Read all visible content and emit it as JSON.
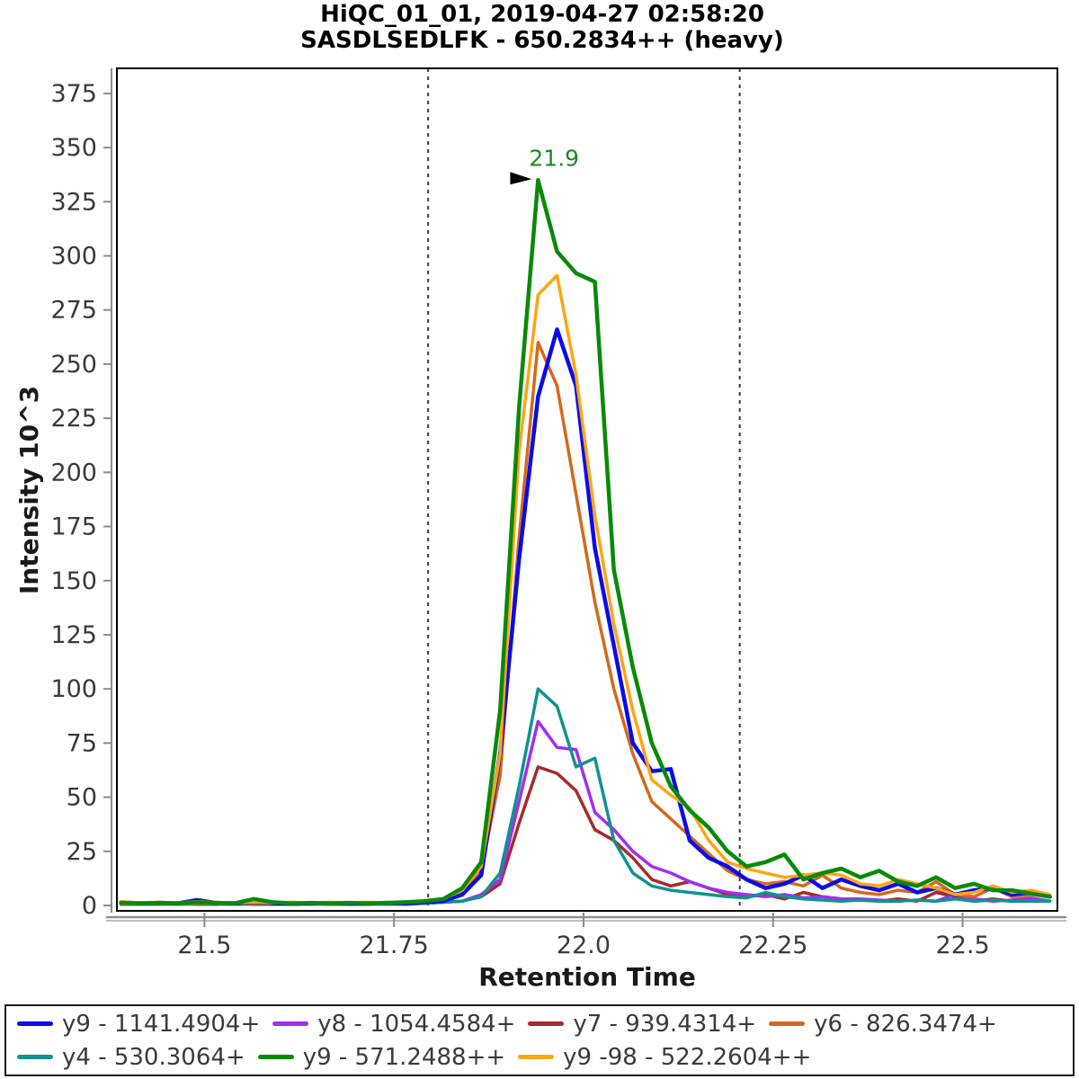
{
  "title": {
    "line1": "HiQC_01_01, 2019-04-27 02:58:20",
    "line2": "SASDLSEDLFK - 650.2834++ (heavy)"
  },
  "axes": {
    "x_label": "Retention Time",
    "y_label": "Intensity 10^3",
    "x_tick_labels": [
      "21.5",
      "21.75",
      "22.0",
      "22.25",
      "22.5"
    ],
    "x_tick_values": [
      21.5,
      21.75,
      22.0,
      22.25,
      22.5
    ],
    "y_tick_values": [
      0,
      25,
      50,
      75,
      100,
      125,
      150,
      175,
      200,
      225,
      250,
      275,
      300,
      325,
      350,
      375
    ]
  },
  "annotation": {
    "text": "21.9",
    "rt": 21.94,
    "intensity": 335,
    "color": "#1c8a1c"
  },
  "peak_boundaries": [
    21.795,
    22.206
  ],
  "legend": {
    "rows": [
      [
        {
          "label": "y9 - 1141.4904+",
          "color": "#0b0be8"
        },
        {
          "label": "y8 - 1054.4584+",
          "color": "#a02ff0"
        },
        {
          "label": "y7 - 939.4314+",
          "color": "#a52a2a"
        },
        {
          "label": "y6 - 826.3474+",
          "color": "#d2691e"
        }
      ],
      [
        {
          "label": "y4 - 530.3064+",
          "color": "#0f9390"
        },
        {
          "label": "y9 - 571.2488++",
          "color": "#088a08"
        },
        {
          "label": "y9 -98 - 522.2604++",
          "color": "#ffa512"
        }
      ]
    ]
  },
  "chart_data": {
    "type": "line",
    "title": "HiQC_01_01, 2019-04-27 02:58:20 — SASDLSEDLFK - 650.2834++ (heavy)",
    "xlabel": "Retention Time",
    "ylabel": "Intensity 10^3",
    "xlim": [
      21.3845,
      22.625
    ],
    "ylim": [
      -2.5,
      386.6
    ],
    "grid": false,
    "legend_position": "bottom",
    "peak_boundaries": [
      21.795,
      22.206
    ],
    "annotated_peak": {
      "rt": 21.94,
      "intensity_10e3": 335,
      "label": "21.9"
    },
    "x": [
      21.39,
      21.415,
      21.44,
      21.465,
      21.49,
      21.515,
      21.54,
      21.565,
      21.59,
      21.615,
      21.64,
      21.665,
      21.69,
      21.715,
      21.74,
      21.765,
      21.79,
      21.815,
      21.84,
      21.865,
      21.89,
      21.915,
      21.94,
      21.965,
      21.99,
      22.015,
      22.04,
      22.065,
      22.09,
      22.115,
      22.14,
      22.165,
      22.19,
      22.215,
      22.24,
      22.265,
      22.29,
      22.315,
      22.34,
      22.365,
      22.39,
      22.415,
      22.44,
      22.465,
      22.49,
      22.515,
      22.54,
      22.565,
      22.59,
      22.615
    ],
    "series": [
      {
        "name": "y7 - 939.4314+",
        "color": "#a52a2a",
        "width": 3.5,
        "values": [
          0.5,
          0.5,
          0.5,
          0.8,
          0.5,
          0.5,
          0.8,
          0.5,
          0.5,
          0.5,
          0.8,
          0.5,
          0.5,
          0.5,
          0.8,
          0.5,
          1,
          1.5,
          2,
          4,
          10,
          38,
          64,
          61,
          53,
          35,
          30,
          22,
          12,
          9,
          11,
          8,
          5,
          4,
          5,
          3,
          6,
          4,
          3,
          2.5,
          2,
          3,
          2,
          6,
          4,
          2,
          3,
          2,
          2.5,
          2
        ]
      },
      {
        "name": "y8 - 1054.4584+",
        "color": "#a02ff0",
        "width": 3.5,
        "values": [
          0.5,
          0.5,
          0.8,
          0.5,
          1,
          0.8,
          0.5,
          0.8,
          0.5,
          0.5,
          0.8,
          0.5,
          0.5,
          0.8,
          0.5,
          0.8,
          1,
          1.5,
          2,
          5,
          12,
          48,
          85,
          73,
          72,
          43,
          35,
          25,
          18,
          15,
          11,
          8,
          6,
          5,
          4,
          5,
          3.5,
          4,
          3,
          3,
          2.5,
          2,
          2.5,
          2,
          5,
          3,
          2,
          2.5,
          3.5,
          2
        ]
      },
      {
        "name": "y4 - 530.3064+",
        "color": "#0f9390",
        "width": 3.5,
        "values": [
          0.8,
          0.5,
          0.8,
          0.5,
          0.8,
          0.8,
          0.5,
          0.8,
          0.5,
          0.8,
          0.5,
          0.8,
          0.5,
          0.8,
          0.5,
          0.8,
          1,
          1.5,
          2,
          4,
          15,
          55,
          100,
          92,
          64,
          68,
          30,
          15,
          9,
          7,
          6,
          5,
          4,
          3.5,
          6,
          4,
          3,
          2.5,
          2,
          2.5,
          2,
          2,
          2.5,
          2,
          3,
          2,
          2.5,
          2,
          2,
          2
        ]
      },
      {
        "name": "y6 - 826.3474+",
        "color": "#d2691e",
        "width": 3.5,
        "values": [
          1,
          0.8,
          1,
          0.8,
          1,
          1,
          0.8,
          1,
          0.8,
          1,
          1,
          0.8,
          1,
          0.8,
          1,
          1,
          1.5,
          3,
          6,
          16,
          60,
          170,
          260,
          240,
          190,
          140,
          100,
          70,
          48,
          40,
          32,
          24,
          16,
          12,
          10,
          11,
          9,
          14,
          8,
          6,
          5,
          7,
          6,
          11,
          5,
          4,
          8,
          4,
          5,
          4
        ]
      },
      {
        "name": "y9 - 1141.4904+",
        "color": "#0b0be8",
        "width": 4.5,
        "values": [
          1.5,
          1,
          1.2,
          1,
          2.5,
          1.2,
          1,
          1.5,
          1,
          0.8,
          1,
          1.2,
          0.8,
          1,
          1.2,
          1,
          1.5,
          2,
          5,
          14,
          70,
          160,
          235,
          266,
          240,
          165,
          120,
          75,
          62,
          63,
          30,
          22,
          18,
          12,
          8,
          10,
          14,
          8,
          12,
          9,
          7,
          10,
          6,
          8,
          5,
          7,
          8,
          5,
          6,
          4
        ]
      },
      {
        "name": "y9 -98 - 522.2604++",
        "color": "#ffa512",
        "width": 3.5,
        "values": [
          1.8,
          1.2,
          1.5,
          1.2,
          1.8,
          1.5,
          1.2,
          1.5,
          1.2,
          1.5,
          1.2,
          1.5,
          1.2,
          1.5,
          1.2,
          1.5,
          2,
          3,
          7,
          18,
          70,
          210,
          282,
          291,
          245,
          180,
          130,
          90,
          58,
          51,
          45,
          30,
          20,
          17,
          15,
          13,
          14,
          15,
          14,
          10,
          9,
          12,
          10,
          8,
          5,
          6,
          9,
          6,
          7,
          5
        ]
      },
      {
        "name": "y9 - 571.2488++",
        "color": "#088a08",
        "width": 4.5,
        "values": [
          1.2,
          1,
          1.2,
          1,
          1.5,
          1.2,
          1,
          3,
          1.5,
          1,
          1.2,
          1,
          1.2,
          1,
          1.2,
          1.5,
          2,
          3,
          8,
          20,
          90,
          230,
          335,
          302,
          292,
          288,
          155,
          110,
          75,
          55,
          44,
          36,
          25,
          18,
          20,
          23.5,
          12,
          15,
          17,
          13,
          16,
          11,
          9,
          13,
          8,
          10,
          7,
          7,
          5.5,
          4
        ]
      }
    ]
  }
}
